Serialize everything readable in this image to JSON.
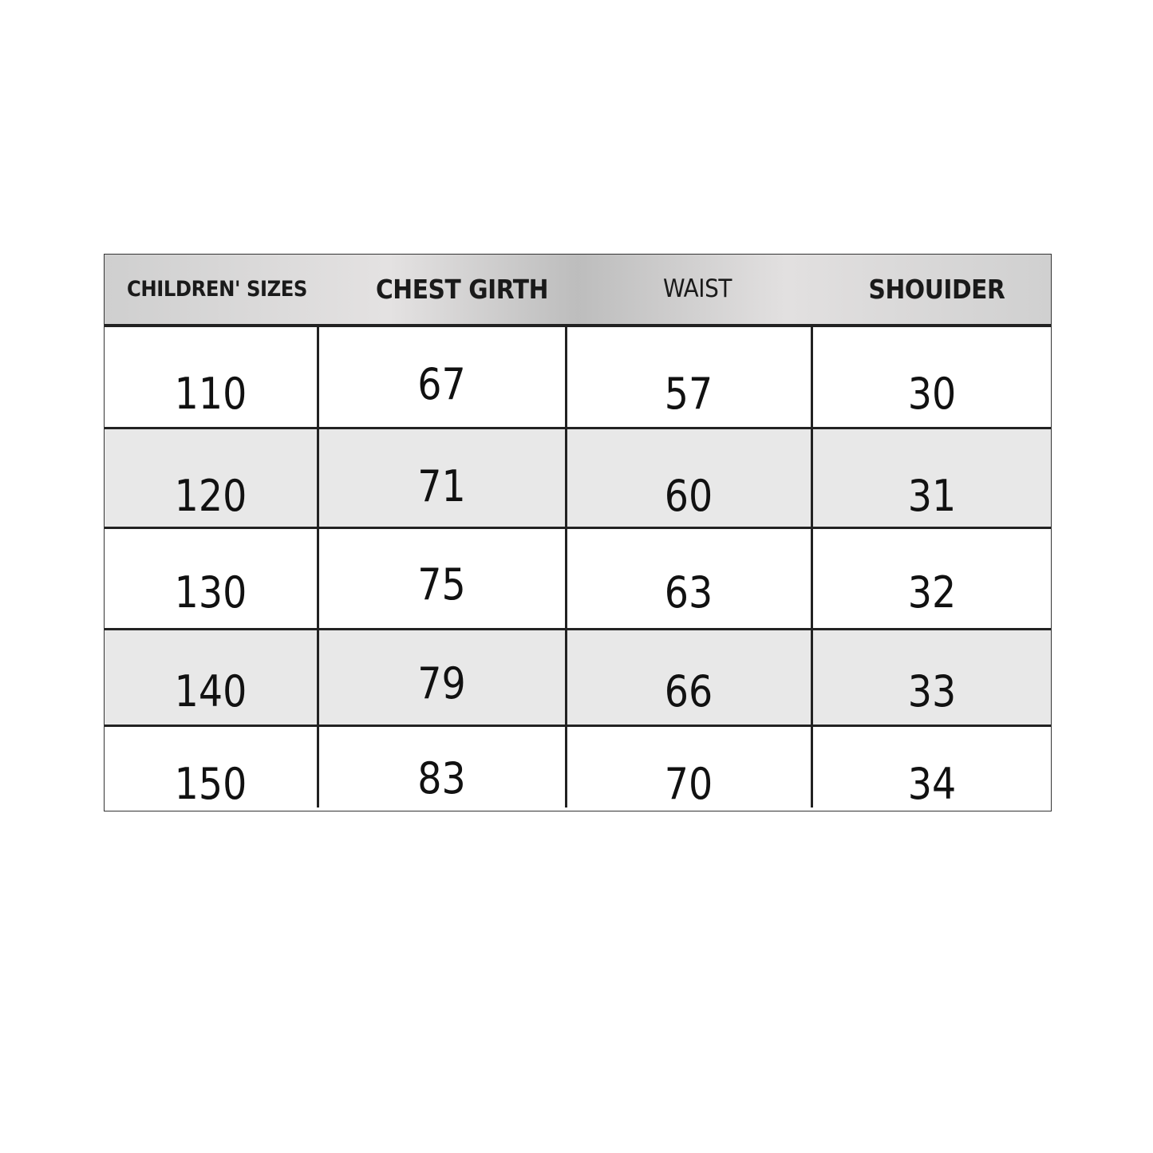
{
  "table": {
    "headers": [
      "CHILDREN' SIZES",
      "CHEST GIRTH",
      "WAIST",
      "SHOUIDER"
    ],
    "rows": [
      [
        "110",
        "67",
        "57",
        "30"
      ],
      [
        "120",
        "71",
        "60",
        "31"
      ],
      [
        "130",
        "75",
        "63",
        "32"
      ],
      [
        "140",
        "79",
        "66",
        "33"
      ],
      [
        "150",
        "83",
        "70",
        "34"
      ]
    ]
  }
}
